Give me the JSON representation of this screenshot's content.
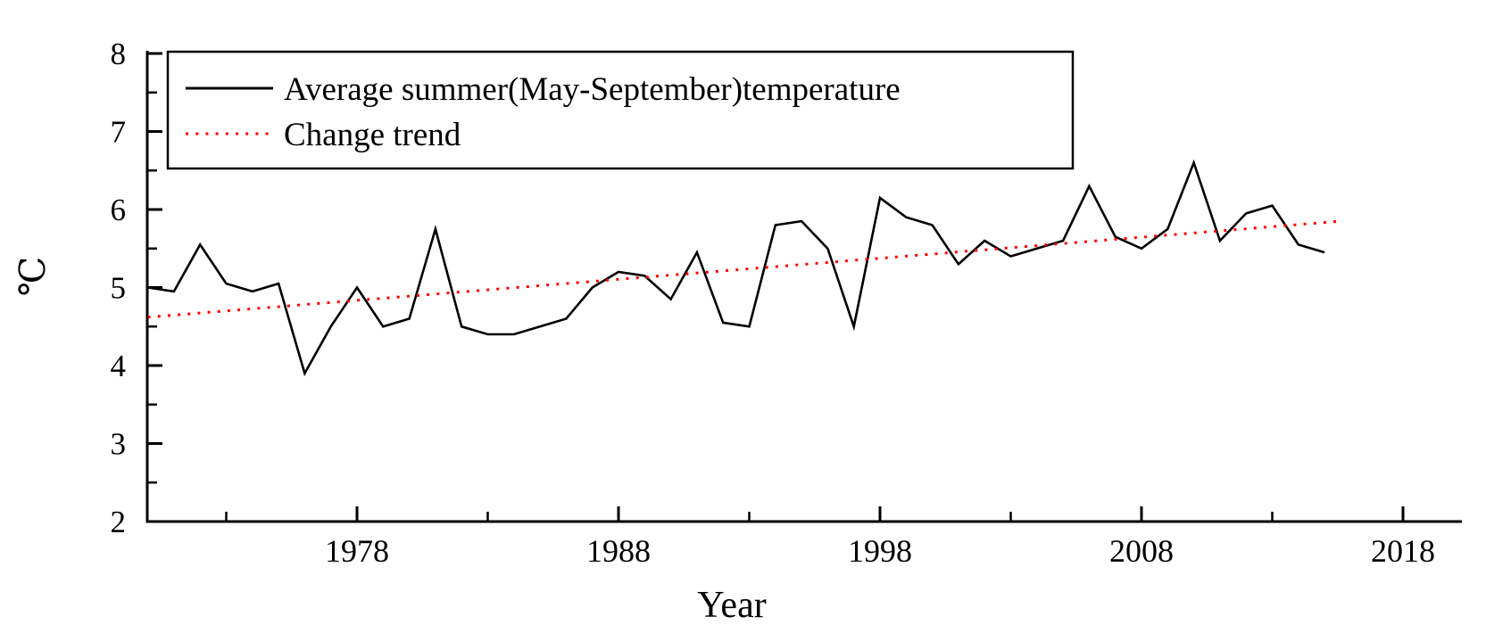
{
  "axes": {
    "x": {
      "title": "Year"
    },
    "y": {
      "title": "℃"
    }
  },
  "legend": {
    "items": [
      {
        "label": "Average summer(May-September)temperature",
        "color": "#000000",
        "style": "solid"
      },
      {
        "label": "Change trend",
        "color": "#ff0000",
        "style": "dotted"
      }
    ]
  },
  "colors": {
    "series": "#000000",
    "trend": "#ff0000",
    "axis": "#000000"
  },
  "chart_data": {
    "type": "line",
    "title": "",
    "xlabel": "Year",
    "ylabel": "℃",
    "xlim": [
      1970,
      2020.3
    ],
    "ylim": [
      2,
      8
    ],
    "grid": false,
    "legend_position": "top-left-box",
    "x_ticks_major": [
      1978,
      1988,
      1998,
      2008,
      2018
    ],
    "x_ticks_minor": [
      1973,
      1983,
      1993,
      2003,
      2013
    ],
    "y_ticks_major": [
      2,
      3,
      4,
      5,
      6,
      7,
      8
    ],
    "y_ticks_minor": [
      2.5,
      3.5,
      4.5,
      5.5,
      6.5,
      7.5
    ],
    "series": [
      {
        "name": "Average summer(May-September)temperature",
        "color": "#000000",
        "style": "solid",
        "x": [
          1970,
          1971,
          1972,
          1973,
          1974,
          1975,
          1976,
          1977,
          1978,
          1979,
          1980,
          1981,
          1982,
          1983,
          1984,
          1985,
          1986,
          1987,
          1988,
          1989,
          1990,
          1991,
          1992,
          1993,
          1994,
          1995,
          1996,
          1997,
          1998,
          1999,
          2000,
          2001,
          2002,
          2003,
          2004,
          2005,
          2006,
          2007,
          2008,
          2009,
          2010,
          2011,
          2012,
          2013,
          2014,
          2015
        ],
        "y": [
          5.0,
          4.95,
          5.55,
          5.05,
          4.95,
          5.05,
          3.9,
          4.5,
          5.0,
          4.5,
          4.6,
          5.75,
          4.5,
          4.4,
          4.4,
          4.5,
          4.6,
          5.0,
          5.2,
          5.15,
          4.85,
          5.45,
          4.55,
          4.5,
          5.8,
          5.85,
          5.5,
          4.5,
          6.15,
          5.9,
          5.8,
          5.3,
          5.6,
          5.4,
          5.5,
          5.6,
          6.3,
          5.65,
          5.5,
          5.75,
          6.6,
          5.6,
          5.95,
          6.05,
          5.55,
          5.45
        ]
      },
      {
        "name": "Change trend",
        "color": "#ff0000",
        "style": "dotted",
        "x": [
          1970,
          2015.6
        ],
        "y": [
          4.62,
          5.85
        ]
      }
    ]
  }
}
